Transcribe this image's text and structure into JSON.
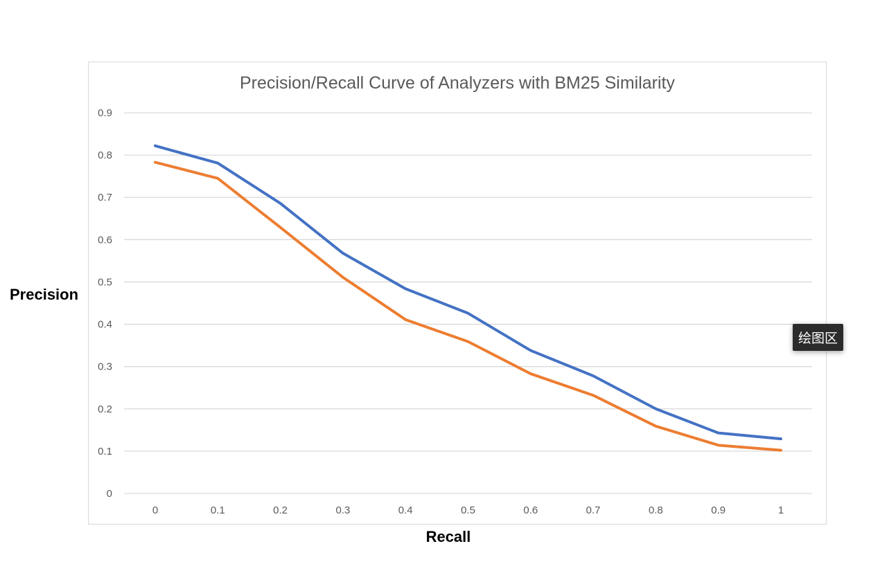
{
  "chart_data": {
    "type": "line",
    "title": "Precision/Recall Curve of Analyzers with BM25 Similarity",
    "xlabel": "Recall",
    "ylabel": "Precision",
    "categories": [
      "0",
      "0.1",
      "0.2",
      "0.3",
      "0.4",
      "0.5",
      "0.6",
      "0.7",
      "0.8",
      "0.9",
      "1"
    ],
    "yticks": [
      "0",
      "0.1",
      "0.2",
      "0.3",
      "0.4",
      "0.5",
      "0.6",
      "0.7",
      "0.8",
      "0.9"
    ],
    "ylim": [
      0,
      0.9
    ],
    "grid": true,
    "series": [
      {
        "color": "#4472c4",
        "values": [
          0.822,
          0.781,
          0.686,
          0.568,
          0.484,
          0.426,
          0.338,
          0.278,
          0.2,
          0.143,
          0.129
        ]
      },
      {
        "color": "#ed7d31",
        "values": [
          0.783,
          0.745,
          0.629,
          0.511,
          0.411,
          0.359,
          0.283,
          0.232,
          0.159,
          0.114,
          0.102
        ]
      }
    ]
  },
  "tooltip": {
    "text": "绘图区"
  }
}
